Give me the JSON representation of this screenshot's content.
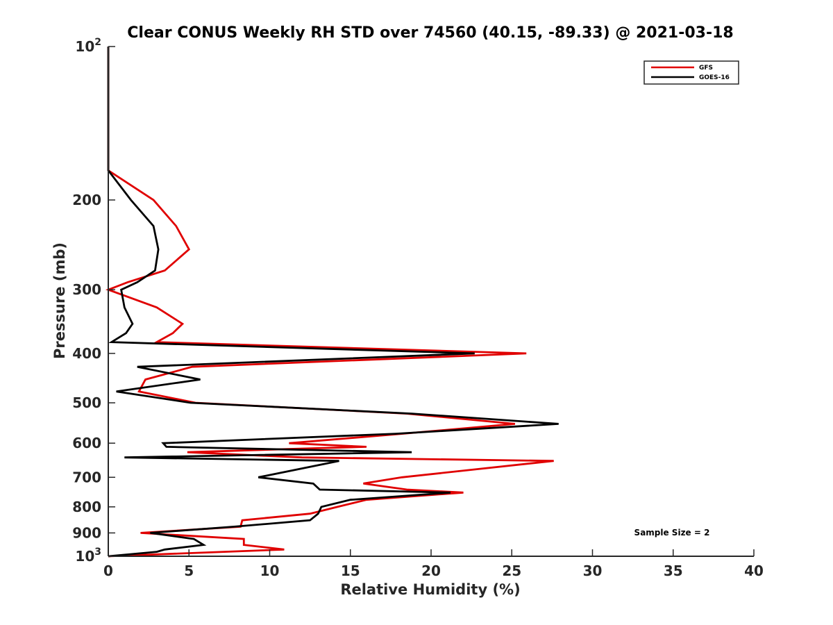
{
  "chart_data": {
    "type": "line",
    "title": "Clear CONUS Weekly RH STD over 74560 (40.15, -89.33) @ 2021-03-18",
    "xlabel": "Relative Humidity (%)",
    "ylabel": "Pressure (mb)",
    "xlim": [
      0,
      40
    ],
    "ylim": [
      100,
      1000
    ],
    "y_scale": "log",
    "y_reversed": true,
    "x_ticks": [
      "0",
      "5",
      "10",
      "15",
      "20",
      "25",
      "30",
      "35",
      "40"
    ],
    "y_ticks": [
      {
        "value": 100,
        "label": "10",
        "sup": "2"
      },
      {
        "value": 200,
        "label": "200"
      },
      {
        "value": 300,
        "label": "300"
      },
      {
        "value": 400,
        "label": "400"
      },
      {
        "value": 500,
        "label": "500"
      },
      {
        "value": 600,
        "label": "600"
      },
      {
        "value": 700,
        "label": "700"
      },
      {
        "value": 800,
        "label": "800"
      },
      {
        "value": 900,
        "label": "900"
      },
      {
        "value": 1000,
        "label": "10",
        "sup": "3"
      }
    ],
    "grid": false,
    "legend_position": "top-right",
    "annotation": "Sample Size = 2",
    "series": [
      {
        "name": "GFS",
        "color": "#e00000",
        "points": [
          [
            0,
            100
          ],
          [
            0,
            175
          ],
          [
            2.8,
            200
          ],
          [
            4.2,
            225
          ],
          [
            5.0,
            250
          ],
          [
            3.5,
            275
          ],
          [
            1.2,
            290
          ],
          [
            0,
            300
          ],
          [
            3.0,
            325
          ],
          [
            4.6,
            350
          ],
          [
            4.0,
            365
          ],
          [
            3.0,
            380
          ],
          [
            25.9,
            400
          ],
          [
            5.2,
            425
          ],
          [
            2.3,
            450
          ],
          [
            1.9,
            475
          ],
          [
            5.4,
            500
          ],
          [
            18.5,
            525
          ],
          [
            25.2,
            550
          ],
          [
            18.2,
            575
          ],
          [
            11.2,
            600
          ],
          [
            16.0,
            610
          ],
          [
            12.0,
            615
          ],
          [
            4.9,
            625
          ],
          [
            12.0,
            640
          ],
          [
            27.6,
            650
          ],
          [
            18.2,
            700
          ],
          [
            15.8,
            720
          ],
          [
            18.5,
            740
          ],
          [
            22.0,
            750
          ],
          [
            16.0,
            775
          ],
          [
            14.2,
            800
          ],
          [
            12.5,
            825
          ],
          [
            8.3,
            850
          ],
          [
            8.2,
            875
          ],
          [
            2.0,
            900
          ],
          [
            8.4,
            925
          ],
          [
            8.4,
            950
          ],
          [
            10.9,
            970
          ],
          [
            0,
            1000
          ]
        ]
      },
      {
        "name": "GOES-16",
        "color": "#000000",
        "points": [
          [
            0,
            100
          ],
          [
            0,
            175
          ],
          [
            1.4,
            200
          ],
          [
            2.8,
            225
          ],
          [
            3.1,
            250
          ],
          [
            2.9,
            275
          ],
          [
            1.8,
            290
          ],
          [
            0.8,
            300
          ],
          [
            1.0,
            325
          ],
          [
            1.5,
            350
          ],
          [
            1.1,
            365
          ],
          [
            0.2,
            380
          ],
          [
            22.7,
            400
          ],
          [
            1.8,
            425
          ],
          [
            5.7,
            450
          ],
          [
            0.5,
            475
          ],
          [
            5.1,
            500
          ],
          [
            18.8,
            525
          ],
          [
            27.9,
            550
          ],
          [
            17.8,
            575
          ],
          [
            3.4,
            600
          ],
          [
            3.6,
            610
          ],
          [
            18.8,
            625
          ],
          [
            1.0,
            640
          ],
          [
            14.3,
            650
          ],
          [
            9.3,
            700
          ],
          [
            12.7,
            720
          ],
          [
            13.1,
            740
          ],
          [
            21.2,
            750
          ],
          [
            15.0,
            775
          ],
          [
            13.2,
            800
          ],
          [
            13.0,
            825
          ],
          [
            12.5,
            850
          ],
          [
            7.8,
            875
          ],
          [
            2.6,
            900
          ],
          [
            5.3,
            925
          ],
          [
            5.9,
            950
          ],
          [
            3.5,
            970
          ],
          [
            3.0,
            980
          ],
          [
            0,
            1000
          ]
        ]
      }
    ]
  }
}
